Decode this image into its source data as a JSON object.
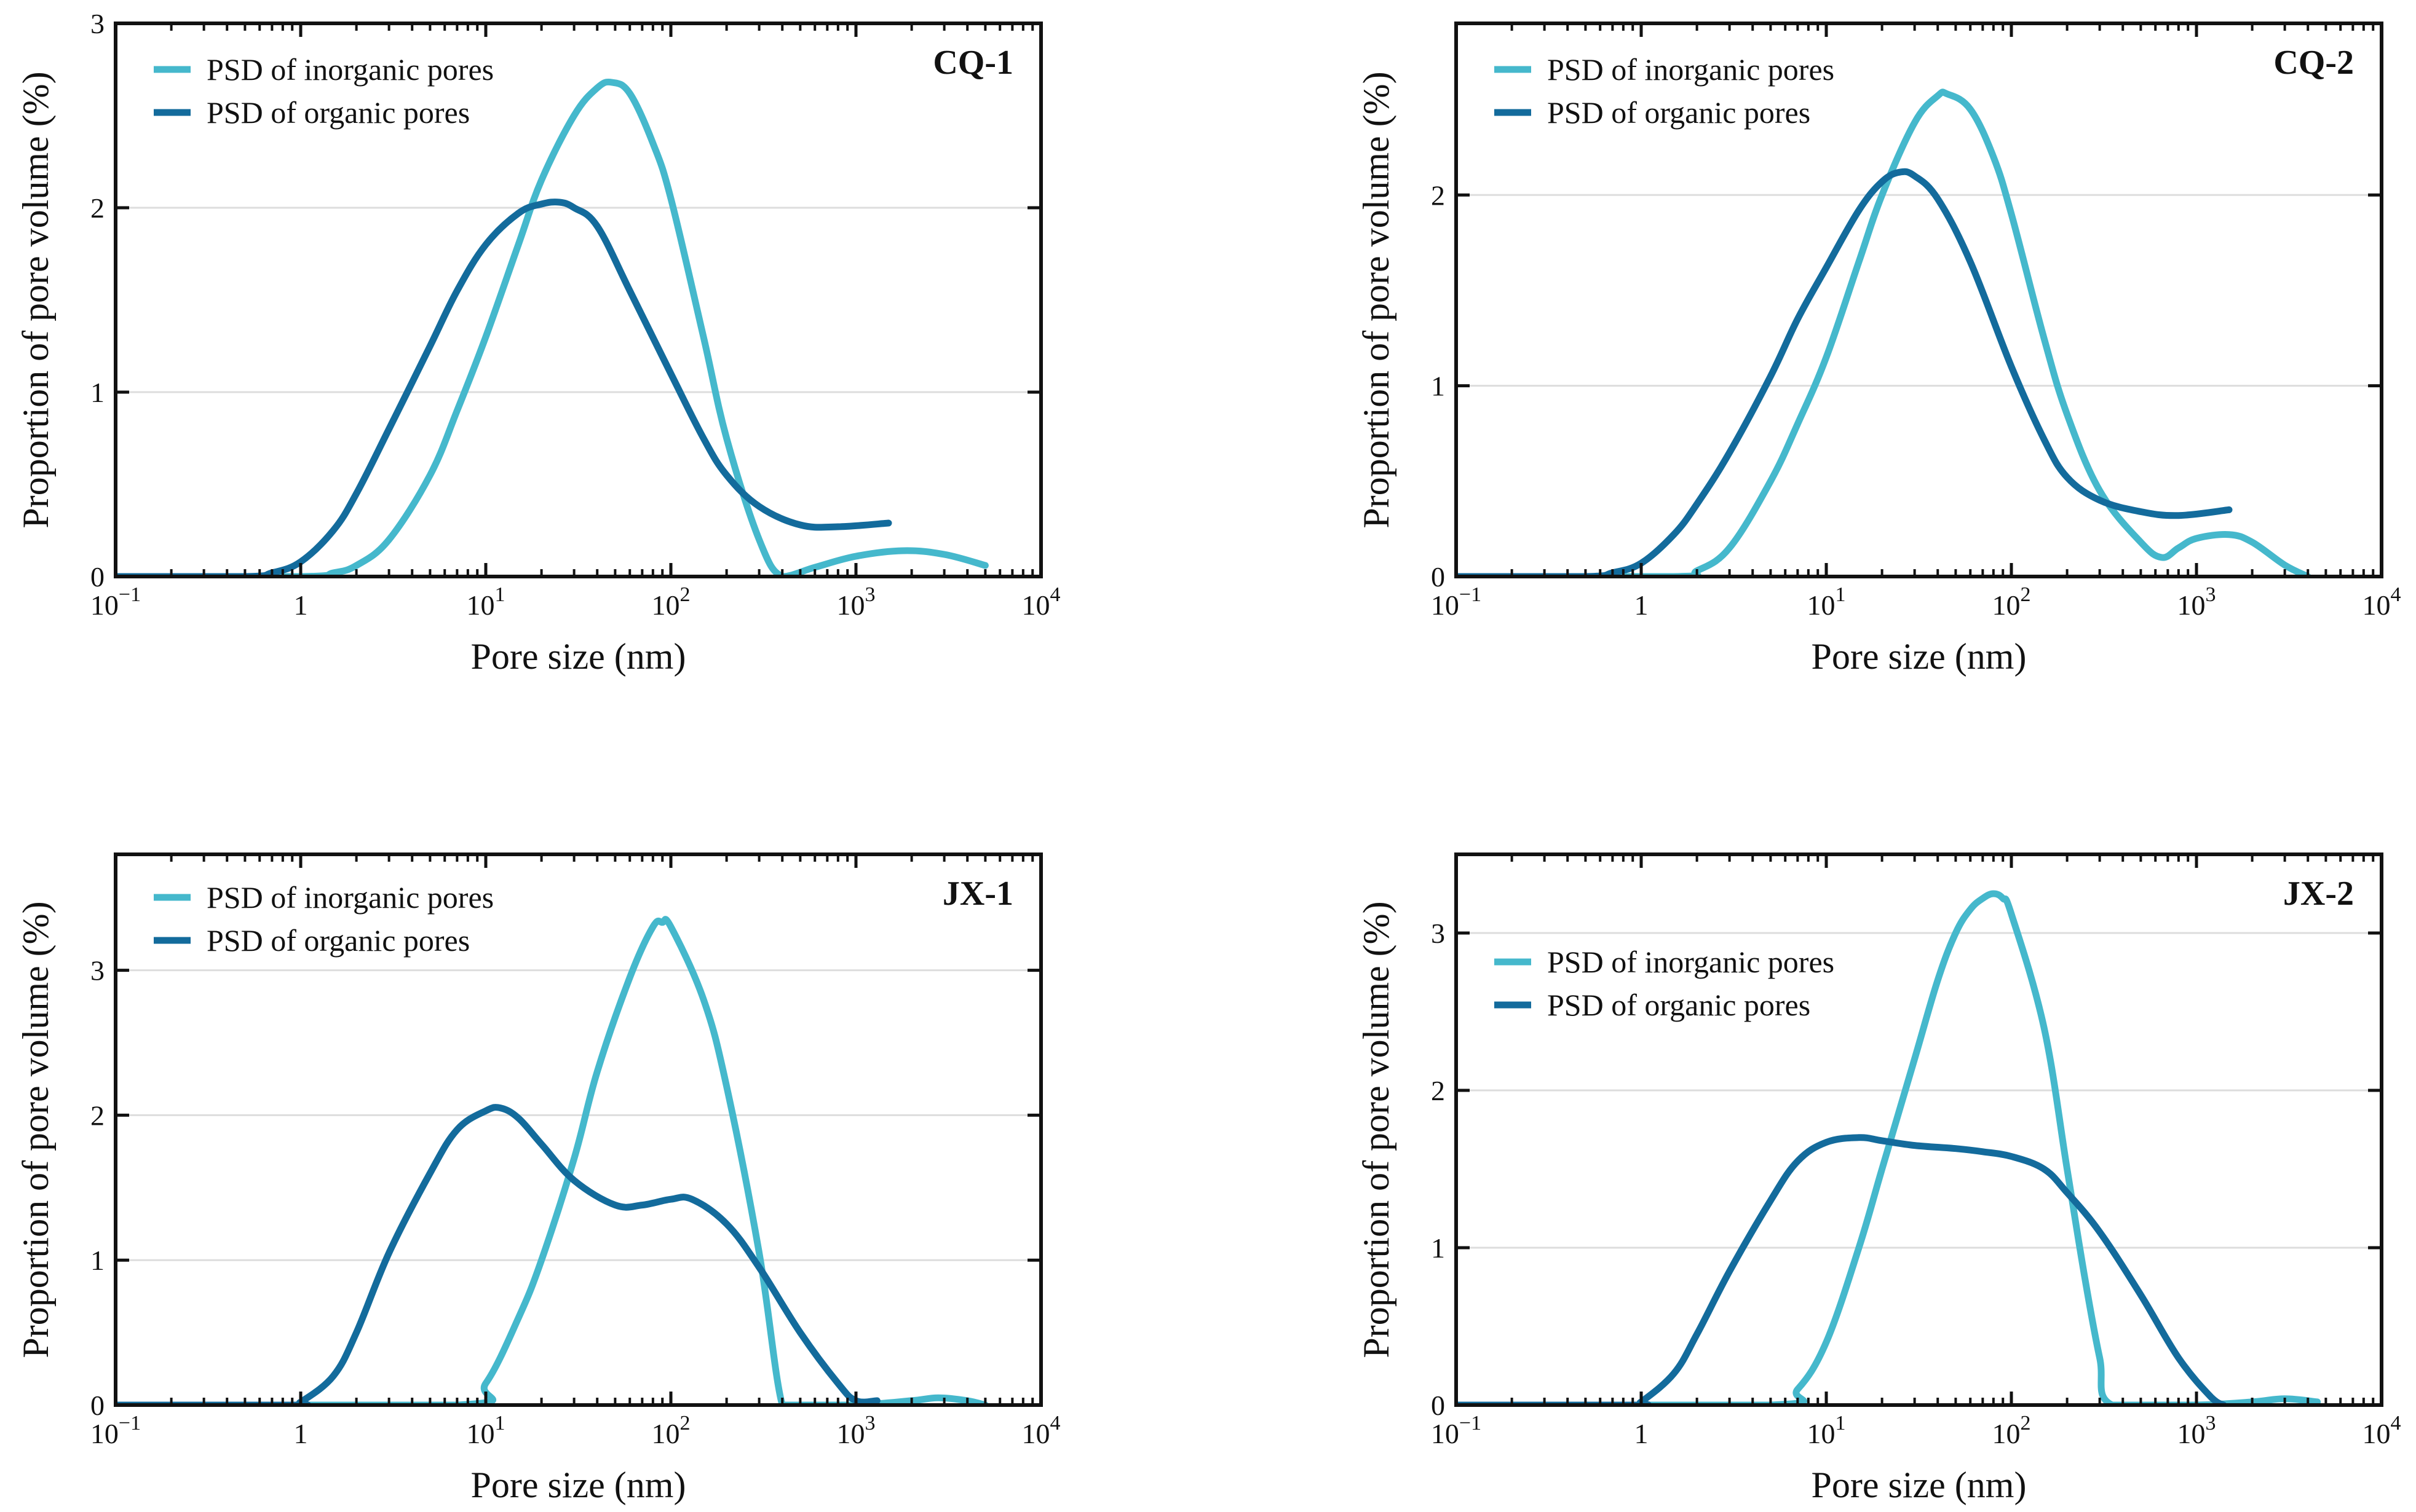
{
  "colors": {
    "inorganic": "#45b8cc",
    "organic": "#136b9c",
    "grid": "#dddddd",
    "frame": "#111111"
  },
  "chart_data": [
    {
      "type": "line",
      "panel_label": "CQ-1",
      "xlabel": "Pore size (nm)",
      "ylabel": "Proportion of pore volume (%)",
      "xscale": "log",
      "xlim": [
        0.1,
        10000
      ],
      "ylim": [
        0,
        3
      ],
      "yticks": [
        0,
        1,
        2,
        3
      ],
      "ytick_labels": [
        "0",
        "1",
        "2",
        "3"
      ],
      "xticks": [
        0.1,
        1,
        10,
        100,
        1000,
        10000
      ],
      "xtick_labels": [
        {
          "base": "10",
          "exp": "−1"
        },
        {
          "base": "1",
          "exp": ""
        },
        {
          "base": "10",
          "exp": "1"
        },
        {
          "base": "10",
          "exp": "2"
        },
        {
          "base": "10",
          "exp": "3"
        },
        {
          "base": "10",
          "exp": "4"
        }
      ],
      "grid": true,
      "legend_position": "top-left",
      "series": [
        {
          "name": "PSD of inorganic pores",
          "color_key": "inorganic",
          "x": [
            0.1,
            1,
            1.5,
            2,
            3,
            5,
            7,
            10,
            15,
            20,
            30,
            40,
            48,
            60,
            80,
            100,
            150,
            200,
            300,
            400,
            600,
            1000,
            1800,
            3000,
            5000
          ],
          "y": [
            0,
            0,
            0.02,
            0.06,
            0.2,
            0.55,
            0.9,
            1.3,
            1.8,
            2.15,
            2.5,
            2.65,
            2.68,
            2.62,
            2.35,
            2.05,
            1.3,
            0.75,
            0.2,
            0,
            0.05,
            0.11,
            0.14,
            0.12,
            0.06
          ]
        },
        {
          "name": "PSD of organic pores",
          "color_key": "organic",
          "x": [
            0.1,
            0.5,
            0.7,
            1,
            1.5,
            2,
            3,
            5,
            7,
            10,
            15,
            20,
            25,
            30,
            40,
            60,
            100,
            150,
            200,
            300,
            500,
            800,
            1500
          ],
          "y": [
            0,
            0,
            0.02,
            0.08,
            0.25,
            0.45,
            0.8,
            1.25,
            1.55,
            1.8,
            1.97,
            2.02,
            2.03,
            2.0,
            1.9,
            1.55,
            1.1,
            0.75,
            0.55,
            0.38,
            0.28,
            0.27,
            0.29
          ]
        }
      ]
    },
    {
      "type": "line",
      "panel_label": "CQ-2",
      "xlabel": "Pore size (nm)",
      "ylabel": "Proportion of pore volume (%)",
      "xscale": "log",
      "xlim": [
        0.1,
        10000
      ],
      "ylim": [
        0,
        2.9
      ],
      "yticks": [
        0,
        1,
        2
      ],
      "ytick_labels": [
        "0",
        "1",
        "2"
      ],
      "xticks": [
        0.1,
        1,
        10,
        100,
        1000,
        10000
      ],
      "xtick_labels": [
        {
          "base": "10",
          "exp": "−1"
        },
        {
          "base": "1",
          "exp": ""
        },
        {
          "base": "10",
          "exp": "1"
        },
        {
          "base": "10",
          "exp": "2"
        },
        {
          "base": "10",
          "exp": "3"
        },
        {
          "base": "10",
          "exp": "4"
        }
      ],
      "grid": true,
      "legend_position": "top-left",
      "series": [
        {
          "name": "PSD of inorganic pores",
          "color_key": "inorganic",
          "x": [
            0.1,
            1.5,
            2,
            3,
            5,
            7,
            10,
            15,
            20,
            30,
            40,
            45,
            60,
            80,
            100,
            150,
            200,
            300,
            500,
            650,
            800,
            1000,
            1500,
            2000,
            3000,
            4000
          ],
          "y": [
            0,
            0,
            0.03,
            0.15,
            0.5,
            0.8,
            1.15,
            1.65,
            2.0,
            2.38,
            2.52,
            2.53,
            2.45,
            2.2,
            1.9,
            1.25,
            0.85,
            0.45,
            0.18,
            0.1,
            0.15,
            0.2,
            0.22,
            0.18,
            0.06,
            0
          ]
        },
        {
          "name": "PSD of organic pores",
          "color_key": "organic",
          "x": [
            0.1,
            0.5,
            0.7,
            1,
            1.5,
            2,
            3,
            5,
            7,
            10,
            15,
            20,
            25,
            30,
            40,
            60,
            100,
            150,
            200,
            300,
            500,
            800,
            1500
          ],
          "y": [
            0,
            0,
            0.02,
            0.07,
            0.22,
            0.38,
            0.65,
            1.05,
            1.35,
            1.62,
            1.92,
            2.07,
            2.12,
            2.1,
            1.98,
            1.65,
            1.1,
            0.72,
            0.52,
            0.4,
            0.34,
            0.32,
            0.35
          ]
        }
      ]
    },
    {
      "type": "line",
      "panel_label": "JX-1",
      "xlabel": "Pore size (nm)",
      "ylabel": "Proportion of pore volume (%)",
      "xscale": "log",
      "xlim": [
        0.1,
        10000
      ],
      "ylim": [
        0,
        3.8
      ],
      "yticks": [
        0,
        1,
        2,
        3
      ],
      "ytick_labels": [
        "0",
        "1",
        "2",
        "3"
      ],
      "xticks": [
        0.1,
        1,
        10,
        100,
        1000,
        10000
      ],
      "xtick_labels": [
        {
          "base": "10",
          "exp": "−1"
        },
        {
          "base": "1",
          "exp": ""
        },
        {
          "base": "10",
          "exp": "1"
        },
        {
          "base": "10",
          "exp": "2"
        },
        {
          "base": "10",
          "exp": "3"
        },
        {
          "base": "10",
          "exp": "4"
        }
      ],
      "grid": true,
      "legend_position": "top-left",
      "series": [
        {
          "name": "PSD of inorganic pores",
          "color_key": "inorganic",
          "x": [
            0.1,
            7,
            10,
            15,
            20,
            30,
            40,
            60,
            80,
            90,
            100,
            150,
            200,
            300,
            400,
            500,
            1000,
            2000,
            2800,
            4000,
            5000
          ],
          "y": [
            0,
            0,
            0.15,
            0.6,
            1.0,
            1.7,
            2.3,
            2.95,
            3.3,
            3.33,
            3.3,
            2.8,
            2.2,
            1.05,
            0,
            0,
            0,
            0.03,
            0.05,
            0.03,
            0
          ]
        },
        {
          "name": "PSD of organic pores",
          "color_key": "organic",
          "x": [
            0.1,
            0.9,
            1,
            1.5,
            2,
            3,
            5,
            7,
            10,
            12,
            15,
            20,
            30,
            50,
            70,
            100,
            130,
            200,
            300,
            500,
            800,
            1000,
            1300
          ],
          "y": [
            0,
            0,
            0.02,
            0.2,
            0.5,
            1.05,
            1.6,
            1.9,
            2.03,
            2.05,
            1.98,
            1.8,
            1.55,
            1.38,
            1.38,
            1.42,
            1.42,
            1.25,
            0.95,
            0.5,
            0.15,
            0.03,
            0.03
          ]
        }
      ]
    },
    {
      "type": "line",
      "panel_label": "JX-2",
      "xlabel": "Pore size (nm)",
      "ylabel": "Proportion of pore volume (%)",
      "xscale": "log",
      "xlim": [
        0.1,
        10000
      ],
      "ylim": [
        0,
        3.5
      ],
      "yticks": [
        0,
        1,
        2,
        3
      ],
      "ytick_labels": [
        "0",
        "1",
        "2",
        "3"
      ],
      "xticks": [
        0.1,
        1,
        10,
        100,
        1000,
        10000
      ],
      "xtick_labels": [
        {
          "base": "10",
          "exp": "−1"
        },
        {
          "base": "1",
          "exp": ""
        },
        {
          "base": "10",
          "exp": "1"
        },
        {
          "base": "10",
          "exp": "2"
        },
        {
          "base": "10",
          "exp": "3"
        },
        {
          "base": "10",
          "exp": "4"
        }
      ],
      "grid": true,
      "legend_position": "top-left",
      "series": [
        {
          "name": "PSD of inorganic pores",
          "color_key": "inorganic",
          "x": [
            0.1,
            5,
            7,
            10,
            15,
            20,
            30,
            40,
            50,
            60,
            70,
            80,
            90,
            100,
            150,
            200,
            250,
            300,
            350,
            1000,
            2000,
            3000,
            4500
          ],
          "y": [
            0,
            0,
            0.1,
            0.4,
            1.0,
            1.5,
            2.2,
            2.7,
            3.0,
            3.15,
            3.22,
            3.25,
            3.22,
            3.12,
            2.4,
            1.5,
            0.8,
            0.3,
            0,
            0,
            0.02,
            0.04,
            0.02
          ]
        },
        {
          "name": "PSD of organic pores",
          "color_key": "organic",
          "x": [
            0.1,
            0.9,
            1,
            1.5,
            2,
            3,
            5,
            7,
            10,
            15,
            20,
            30,
            50,
            70,
            100,
            150,
            200,
            300,
            500,
            800,
            1200,
            1400
          ],
          "y": [
            0,
            0,
            0.02,
            0.2,
            0.45,
            0.85,
            1.3,
            1.55,
            1.67,
            1.7,
            1.68,
            1.65,
            1.63,
            1.61,
            1.58,
            1.5,
            1.35,
            1.1,
            0.7,
            0.3,
            0.05,
            0
          ]
        }
      ]
    }
  ]
}
